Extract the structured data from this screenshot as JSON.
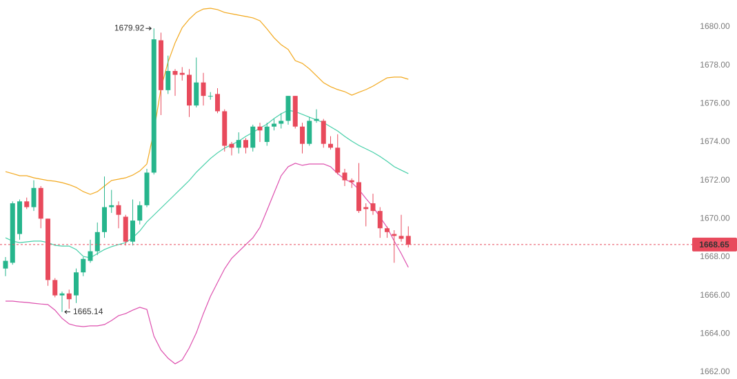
{
  "chart_data": {
    "type": "candlestick",
    "up_color": "#26b58c",
    "down_color": "#e84a5c",
    "open": [
      1667.4,
      1667.7,
      1669.2,
      1670.9,
      1670.6,
      1671.6,
      1670.0,
      1666.8,
      1666.0,
      1666.1,
      1666.0,
      1667.2,
      1667.8,
      1668.3,
      1669.3,
      1670.6,
      1670.7,
      1670.1,
      1668.8,
      1669.9,
      1670.7,
      1672.4,
      1679.3,
      1676.7,
      1677.7,
      1677.6,
      1677.5,
      1675.9,
      1677.1,
      1676.4,
      1676.5,
      1675.6,
      1673.9,
      1673.7,
      1674.1,
      1673.7,
      1674.8,
      1674.0,
      1674.8,
      1674.95,
      1675.1,
      1676.4,
      1674.8,
      1673.9,
      1675.1,
      1675.1,
      1673.9,
      1673.7,
      1672.4,
      1672.0,
      1671.9,
      1670.6,
      1670.8,
      1670.4,
      1669.5,
      1669.2,
      1669.1,
      1669.1
    ],
    "high": [
      1668.0,
      1670.9,
      1671.0,
      1671.1,
      1672.0,
      1671.7,
      1670.0,
      1666.9,
      1666.2,
      1666.3,
      1667.4,
      1668.0,
      1668.9,
      1669.8,
      1672.2,
      1671.5,
      1670.9,
      1670.2,
      1671.0,
      1670.9,
      1672.6,
      1679.92,
      1679.7,
      1678.5,
      1677.8,
      1677.9,
      1677.8,
      1678.4,
      1677.6,
      1676.6,
      1676.8,
      1675.7,
      1674.0,
      1674.5,
      1674.2,
      1674.9,
      1675.0,
      1675.0,
      1675.2,
      1675.5,
      1676.4,
      1676.4,
      1675.0,
      1675.3,
      1675.7,
      1675.2,
      1674.3,
      1674.4,
      1672.6,
      1672.1,
      1672.9,
      1670.8,
      1671.3,
      1670.6,
      1669.6,
      1669.4,
      1670.2,
      1669.6
    ],
    "low": [
      1667.0,
      1667.6,
      1668.9,
      1670.5,
      1670.4,
      1669.5,
      1666.5,
      1665.9,
      1665.14,
      1665.3,
      1665.6,
      1667.0,
      1667.7,
      1668.1,
      1669.0,
      1670.3,
      1669.5,
      1668.6,
      1668.6,
      1669.7,
      1670.6,
      1672.3,
      1675.4,
      1676.5,
      1676.4,
      1677.2,
      1675.3,
      1675.8,
      1675.9,
      1676.2,
      1675.5,
      1673.5,
      1673.3,
      1673.4,
      1673.4,
      1673.5,
      1674.0,
      1673.8,
      1674.6,
      1674.7,
      1674.9,
      1674.7,
      1673.4,
      1673.8,
      1675.0,
      1673.7,
      1673.6,
      1672.3,
      1671.7,
      1671.6,
      1670.3,
      1669.6,
      1670.2,
      1669.0,
      1669.0,
      1667.7,
      1668.8,
      1668.5
    ],
    "close": [
      1667.8,
      1670.8,
      1670.9,
      1670.6,
      1671.6,
      1670.0,
      1666.8,
      1666.0,
      1666.1,
      1665.8,
      1667.2,
      1667.9,
      1668.3,
      1669.3,
      1670.6,
      1670.7,
      1670.2,
      1668.8,
      1669.9,
      1670.7,
      1672.4,
      1679.35,
      1676.7,
      1677.7,
      1677.5,
      1677.5,
      1675.9,
      1677.1,
      1676.4,
      1676.4,
      1675.6,
      1673.8,
      1673.7,
      1674.1,
      1673.7,
      1674.8,
      1674.6,
      1674.8,
      1674.95,
      1675.1,
      1676.4,
      1674.8,
      1673.9,
      1675.1,
      1675.2,
      1673.9,
      1673.7,
      1672.4,
      1672.0,
      1671.9,
      1670.4,
      1670.5,
      1670.4,
      1669.5,
      1669.3,
      1669.1,
      1668.95,
      1668.65
    ],
    "bands": [
      {
        "color": "#f2a81d",
        "values": [
          1672.45,
          1672.35,
          1672.24,
          1672.24,
          1672.13,
          1672.06,
          1671.99,
          1671.95,
          1671.88,
          1671.77,
          1671.63,
          1671.41,
          1671.27,
          1671.41,
          1671.7,
          1671.99,
          1672.06,
          1672.13,
          1672.27,
          1672.49,
          1672.85,
          1674.57,
          1676.8,
          1678.17,
          1679.17,
          1679.96,
          1680.4,
          1680.75,
          1680.93,
          1680.97,
          1680.9,
          1680.75,
          1680.68,
          1680.61,
          1680.54,
          1680.47,
          1680.32,
          1679.89,
          1679.43,
          1679.07,
          1678.82,
          1678.24,
          1678.1,
          1677.81,
          1677.45,
          1677.09,
          1676.88,
          1676.73,
          1676.62,
          1676.44,
          1676.59,
          1676.73,
          1676.91,
          1677.13,
          1677.34,
          1677.38,
          1677.38,
          1677.27
        ]
      },
      {
        "color": "#45cfa8",
        "values": [
          1669.0,
          1668.83,
          1668.75,
          1668.79,
          1668.83,
          1668.83,
          1668.75,
          1668.61,
          1668.57,
          1668.57,
          1668.39,
          1668.03,
          1667.96,
          1668.18,
          1668.39,
          1668.54,
          1668.65,
          1668.75,
          1669.0,
          1669.36,
          1669.83,
          1670.19,
          1670.55,
          1670.91,
          1671.27,
          1671.63,
          1671.99,
          1672.42,
          1672.78,
          1673.14,
          1673.43,
          1673.68,
          1673.86,
          1674.04,
          1674.29,
          1674.5,
          1674.72,
          1674.93,
          1675.22,
          1675.47,
          1675.65,
          1675.58,
          1675.44,
          1675.29,
          1675.15,
          1675.01,
          1674.79,
          1674.57,
          1674.29,
          1674.04,
          1673.82,
          1673.64,
          1673.46,
          1673.24,
          1672.99,
          1672.71,
          1672.53,
          1672.35
        ]
      },
      {
        "color": "#dd4fae",
        "values": [
          1665.7,
          1665.7,
          1665.66,
          1665.63,
          1665.59,
          1665.55,
          1665.52,
          1665.23,
          1664.8,
          1664.51,
          1664.41,
          1664.37,
          1664.41,
          1664.41,
          1664.48,
          1664.69,
          1664.94,
          1665.05,
          1665.23,
          1665.38,
          1665.27,
          1663.87,
          1663.15,
          1662.72,
          1662.43,
          1662.64,
          1663.26,
          1664.05,
          1665.05,
          1665.95,
          1666.67,
          1667.39,
          1667.93,
          1668.29,
          1668.65,
          1669.0,
          1669.54,
          1670.44,
          1671.34,
          1672.24,
          1672.71,
          1672.89,
          1672.78,
          1672.85,
          1672.85,
          1672.85,
          1672.71,
          1672.35,
          1672.06,
          1671.88,
          1671.52,
          1671.05,
          1670.62,
          1670.08,
          1669.54,
          1668.83,
          1668.18,
          1667.46
        ]
      }
    ],
    "high_label": 1679.92,
    "low_label": 1665.14,
    "last_price": 1668.65,
    "last_price_color": "#e84a5c",
    "ylim": [
      1661.64,
      1681.4
    ],
    "yticks": [
      {
        "value": 1662,
        "label": "1662.00"
      },
      {
        "value": 1664,
        "label": "1664.00"
      },
      {
        "value": 1666,
        "label": "1666.00"
      },
      {
        "value": 1668,
        "label": "1668.00"
      },
      {
        "value": 1670,
        "label": "1670.00"
      },
      {
        "value": 1672,
        "label": "1672.00"
      },
      {
        "value": 1674,
        "label": "1674.00"
      },
      {
        "value": 1676,
        "label": "1676.00"
      },
      {
        "value": 1678,
        "label": "1678.00"
      },
      {
        "value": 1680,
        "label": "1680.00"
      }
    ],
    "grid": false
  }
}
